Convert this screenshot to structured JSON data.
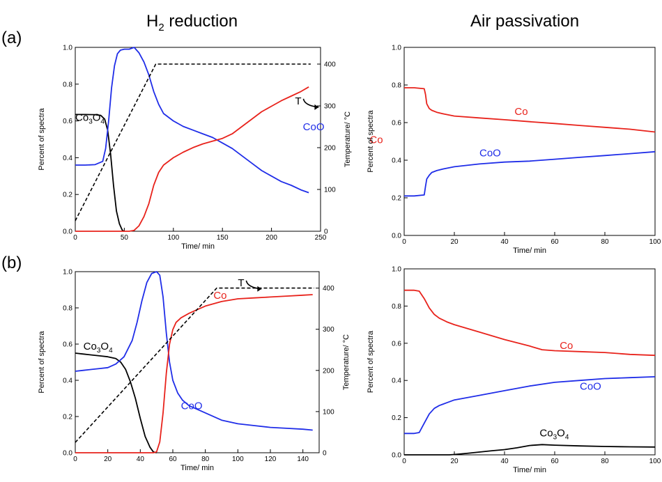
{
  "headers": {
    "left_title": "H",
    "left_title_sub": "2",
    "left_title_rest": " reduction",
    "right_title": "Air passivation"
  },
  "panel_labels": {
    "a": "(a)",
    "b": "(b)"
  },
  "colors": {
    "Co": "#e8221b",
    "CoO": "#1f2de8",
    "Co3O4": "#000000",
    "T": "#000000"
  },
  "chart_data": [
    {
      "type": "line",
      "panel": "(a) H2 reduction",
      "xlabel": "Time/ min",
      "ylabel": "Percent of spectra",
      "y2label": "Temperature/ °C",
      "xlim": [
        0,
        250
      ],
      "xticks": [
        0,
        50,
        100,
        150,
        200,
        250
      ],
      "ylim": [
        0,
        1.0
      ],
      "yticks": [
        0.0,
        0.2,
        0.4,
        0.6,
        0.8,
        1.0
      ],
      "y2lim": [
        0,
        440
      ],
      "y2ticks": [
        0,
        100,
        200,
        300,
        400
      ],
      "series": [
        {
          "name": "Co3O4",
          "label_main": "Co",
          "label_sub1": "3",
          "label_mid": "O",
          "label_sub2": "4",
          "style": "solid",
          "axis": "left",
          "x": [
            0,
            10,
            20,
            26,
            30,
            33,
            36,
            39,
            42,
            45,
            48,
            50
          ],
          "y": [
            0.635,
            0.635,
            0.634,
            0.63,
            0.61,
            0.55,
            0.42,
            0.25,
            0.11,
            0.04,
            0.005,
            0.0
          ]
        },
        {
          "name": "CoO",
          "label": "CoO",
          "style": "solid",
          "axis": "left",
          "x": [
            0,
            10,
            20,
            28,
            31,
            34,
            37,
            40,
            43,
            46,
            50,
            55,
            60,
            65,
            70,
            75,
            80,
            85,
            90,
            100,
            110,
            120,
            130,
            140,
            150,
            160,
            170,
            180,
            190,
            200,
            210,
            220,
            230,
            238
          ],
          "y": [
            0.36,
            0.36,
            0.362,
            0.38,
            0.45,
            0.6,
            0.78,
            0.9,
            0.965,
            0.985,
            0.99,
            0.99,
            1.0,
            0.97,
            0.92,
            0.85,
            0.76,
            0.69,
            0.64,
            0.6,
            0.57,
            0.55,
            0.53,
            0.51,
            0.48,
            0.45,
            0.41,
            0.37,
            0.33,
            0.3,
            0.27,
            0.25,
            0.225,
            0.21
          ]
        },
        {
          "name": "Co",
          "label": "Co",
          "style": "solid",
          "axis": "left",
          "x": [
            0,
            50,
            55,
            60,
            65,
            70,
            75,
            80,
            85,
            90,
            100,
            110,
            120,
            130,
            140,
            150,
            160,
            170,
            180,
            190,
            200,
            210,
            220,
            230,
            238
          ],
          "y": [
            0.0,
            0.0,
            0.0,
            0.005,
            0.03,
            0.08,
            0.15,
            0.25,
            0.32,
            0.36,
            0.4,
            0.43,
            0.455,
            0.475,
            0.49,
            0.505,
            0.53,
            0.57,
            0.61,
            0.65,
            0.68,
            0.71,
            0.735,
            0.76,
            0.785
          ]
        },
        {
          "name": "T",
          "label": "T",
          "style": "dashed",
          "axis": "right",
          "x": [
            0,
            82,
            240
          ],
          "y": [
            25,
            400,
            400
          ]
        }
      ]
    },
    {
      "type": "line",
      "panel": "(a) Air passivation",
      "xlabel": "Time/ min",
      "ylabel": "Percent of spectra",
      "xlim": [
        0,
        100
      ],
      "xticks": [
        0,
        20,
        40,
        60,
        80,
        100
      ],
      "ylim": [
        0,
        1.0
      ],
      "yticks": [
        0.0,
        0.2,
        0.4,
        0.6,
        0.8,
        1.0
      ],
      "series": [
        {
          "name": "Co",
          "label": "Co",
          "style": "solid",
          "x": [
            0,
            4,
            8,
            8.5,
            9,
            10,
            11,
            13,
            16,
            20,
            30,
            40,
            50,
            60,
            70,
            80,
            90,
            100
          ],
          "y": [
            0.785,
            0.785,
            0.78,
            0.75,
            0.7,
            0.675,
            0.665,
            0.655,
            0.645,
            0.635,
            0.625,
            0.615,
            0.605,
            0.595,
            0.585,
            0.575,
            0.565,
            0.55
          ]
        },
        {
          "name": "CoO",
          "label": "CoO",
          "style": "solid",
          "x": [
            0,
            4,
            8,
            8.5,
            9,
            10,
            11,
            13,
            16,
            20,
            30,
            40,
            50,
            60,
            70,
            80,
            90,
            100
          ],
          "y": [
            0.21,
            0.21,
            0.215,
            0.26,
            0.3,
            0.32,
            0.335,
            0.345,
            0.355,
            0.365,
            0.38,
            0.39,
            0.395,
            0.405,
            0.415,
            0.425,
            0.435,
            0.445
          ]
        }
      ]
    },
    {
      "type": "line",
      "panel": "(b) H2 reduction",
      "xlabel": "Time/ min",
      "ylabel": "Percent of spectra",
      "y2label": "Temperature/ °C",
      "xlim": [
        0,
        150
      ],
      "xticks": [
        0,
        20,
        40,
        60,
        80,
        100,
        120,
        140
      ],
      "ylim": [
        0,
        1.0
      ],
      "yticks": [
        0.0,
        0.2,
        0.4,
        0.6,
        0.8,
        1.0
      ],
      "y2lim": [
        0,
        440
      ],
      "y2ticks": [
        0,
        100,
        200,
        300,
        400
      ],
      "series": [
        {
          "name": "Co3O4",
          "label_main": "Co",
          "label_sub1": "3",
          "label_mid": "O",
          "label_sub2": "4",
          "style": "solid",
          "axis": "left",
          "x": [
            0,
            5,
            10,
            15,
            20,
            25,
            28,
            31,
            34,
            37,
            40,
            43,
            46,
            48,
            50
          ],
          "y": [
            0.55,
            0.545,
            0.54,
            0.535,
            0.53,
            0.52,
            0.5,
            0.46,
            0.39,
            0.3,
            0.19,
            0.09,
            0.03,
            0.005,
            0.0
          ]
        },
        {
          "name": "CoO",
          "label": "CoO",
          "style": "solid",
          "axis": "left",
          "x": [
            0,
            5,
            10,
            15,
            20,
            25,
            30,
            35,
            38,
            41,
            44,
            47,
            50,
            52,
            54,
            56,
            58,
            60,
            63,
            66,
            70,
            80,
            90,
            100,
            110,
            120,
            130,
            140,
            146
          ],
          "y": [
            0.45,
            0.455,
            0.46,
            0.465,
            0.47,
            0.49,
            0.53,
            0.62,
            0.72,
            0.84,
            0.94,
            0.99,
            1.0,
            0.98,
            0.86,
            0.66,
            0.5,
            0.4,
            0.33,
            0.29,
            0.26,
            0.22,
            0.18,
            0.16,
            0.15,
            0.14,
            0.135,
            0.13,
            0.125
          ]
        },
        {
          "name": "Co",
          "label": "Co",
          "style": "solid",
          "axis": "left",
          "x": [
            0,
            48,
            50,
            52,
            54,
            56,
            58,
            60,
            62,
            65,
            70,
            75,
            80,
            90,
            100,
            110,
            120,
            130,
            140,
            146
          ],
          "y": [
            0.0,
            0.0,
            0.005,
            0.06,
            0.22,
            0.44,
            0.6,
            0.68,
            0.72,
            0.745,
            0.77,
            0.79,
            0.81,
            0.835,
            0.85,
            0.855,
            0.86,
            0.865,
            0.87,
            0.873
          ]
        },
        {
          "name": "T",
          "label": "T",
          "style": "dashed",
          "axis": "right",
          "x": [
            0,
            87,
            147
          ],
          "y": [
            25,
            400,
            400
          ]
        }
      ]
    },
    {
      "type": "line",
      "panel": "(b) Air passivation",
      "xlabel": "Time/ min",
      "ylabel": "Percent of spectra",
      "xlim": [
        0,
        100
      ],
      "xticks": [
        0,
        20,
        40,
        60,
        80,
        100
      ],
      "ylim": [
        0,
        1.0
      ],
      "yticks": [
        0.0,
        0.2,
        0.4,
        0.6,
        0.8,
        1.0
      ],
      "series": [
        {
          "name": "Co",
          "label": "Co",
          "style": "solid",
          "x": [
            0,
            4,
            6,
            8,
            10,
            12,
            14,
            17,
            20,
            30,
            40,
            50,
            55,
            60,
            70,
            80,
            90,
            100
          ],
          "y": [
            0.885,
            0.885,
            0.88,
            0.84,
            0.79,
            0.755,
            0.735,
            0.715,
            0.7,
            0.66,
            0.62,
            0.585,
            0.565,
            0.56,
            0.555,
            0.55,
            0.54,
            0.535
          ]
        },
        {
          "name": "CoO",
          "label": "CoO",
          "style": "solid",
          "x": [
            0,
            4,
            6,
            8,
            10,
            12,
            14,
            17,
            20,
            30,
            40,
            50,
            60,
            70,
            80,
            90,
            100
          ],
          "y": [
            0.115,
            0.115,
            0.12,
            0.17,
            0.22,
            0.25,
            0.265,
            0.28,
            0.295,
            0.32,
            0.345,
            0.37,
            0.39,
            0.4,
            0.41,
            0.415,
            0.42
          ]
        },
        {
          "name": "Co3O4",
          "label_main": "Co",
          "label_sub1": "3",
          "label_mid": "O",
          "label_sub2": "4",
          "style": "solid",
          "x": [
            0,
            18,
            20,
            25,
            30,
            35,
            40,
            45,
            50,
            55,
            60,
            70,
            80,
            90,
            100
          ],
          "y": [
            0.0,
            0.0,
            0.002,
            0.008,
            0.015,
            0.022,
            0.028,
            0.038,
            0.05,
            0.055,
            0.052,
            0.048,
            0.045,
            0.043,
            0.042
          ]
        }
      ]
    }
  ]
}
